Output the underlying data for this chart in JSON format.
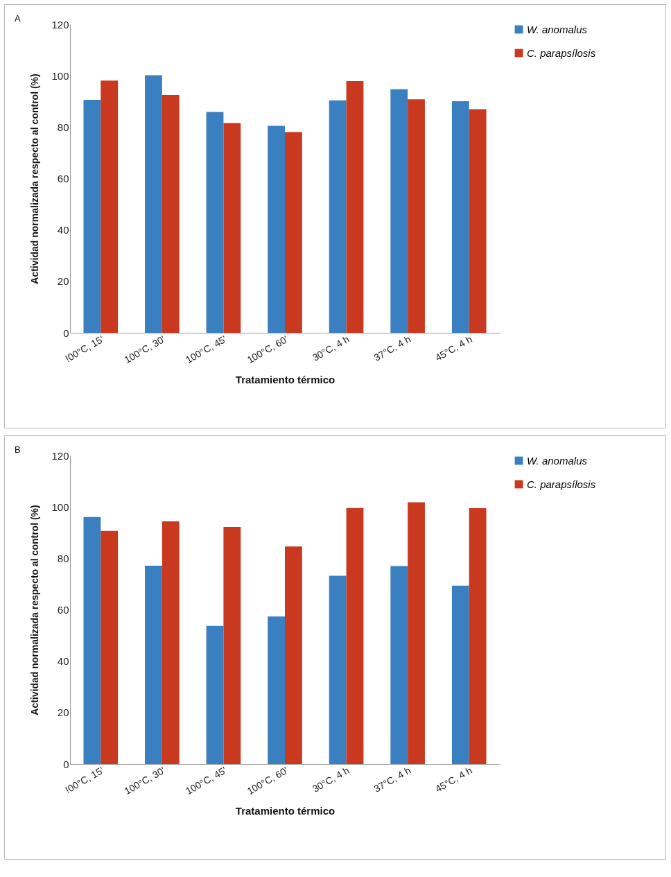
{
  "chart_data": [
    {
      "type": "bar",
      "title": "A",
      "xlabel": "Tratamiento térmico",
      "ylabel": "Actividad  normalizada  respecto al control (%)",
      "categories": [
        "!00°C, 15'",
        "100°C, 30'",
        "100°C, 45'",
        "100°C, 60'",
        "30°C, 4 h",
        "37°C, 4 h",
        "45°C, 4 h"
      ],
      "series": [
        {
          "name": "W. anomalus",
          "color": "#3a7fbf",
          "values": [
            90.6,
            100.2,
            85.9,
            80.5,
            90.4,
            94.7,
            90.1
          ]
        },
        {
          "name": "C. parapsílosis",
          "color": "#c8391f",
          "values": [
            98.1,
            92.5,
            81.6,
            78.1,
            97.9,
            90.8,
            87.0
          ]
        }
      ],
      "ylim": [
        0,
        120
      ],
      "yticks": [
        0,
        20,
        40,
        60,
        80,
        100,
        120
      ],
      "grid": false,
      "legend": "right"
    },
    {
      "type": "bar",
      "title": "B",
      "xlabel": "Tratamiento térmico",
      "ylabel": "Actividad  normalizada  respecto al control (%)",
      "categories": [
        "!00°C, 15'",
        "100°C, 30'",
        "100°C, 45'",
        "100°C, 60'",
        "30°C, 4 h",
        "37°C, 4 h",
        "45°C, 4 h"
      ],
      "series": [
        {
          "name": "W. anomalus",
          "color": "#3a7fbf",
          "values": [
            96.1,
            77.1,
            53.7,
            57.4,
            73.2,
            77.0,
            69.4
          ]
        },
        {
          "name": "C. parapsílosis",
          "color": "#c8391f",
          "values": [
            90.7,
            94.4,
            92.2,
            84.6,
            99.6,
            101.8,
            99.5
          ]
        }
      ],
      "ylim": [
        0,
        120
      ],
      "yticks": [
        0,
        20,
        40,
        60,
        80,
        100,
        120
      ],
      "grid": false,
      "legend": "right"
    }
  ]
}
